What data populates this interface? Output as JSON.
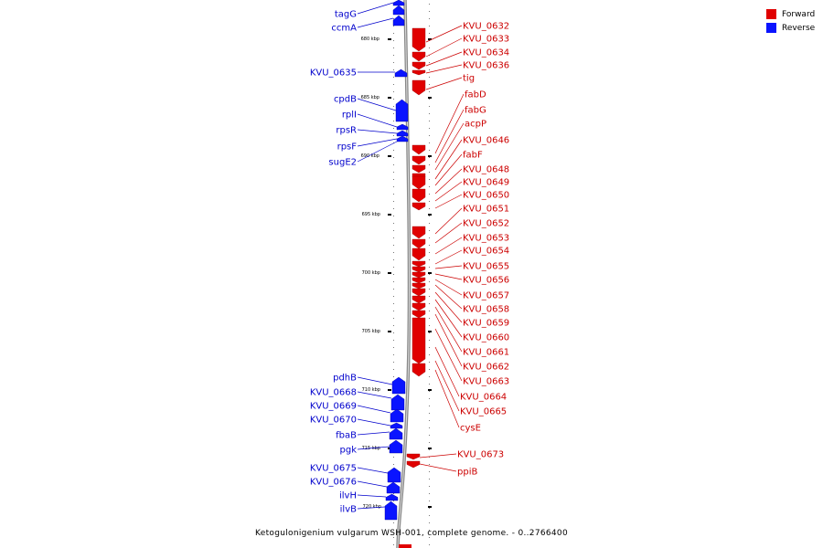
{
  "legend": [
    {
      "label": "Forward",
      "color": "#e00000"
    },
    {
      "label": "Reverse",
      "color": "#0a14ff"
    }
  ],
  "caption": "Ketogulonigenium vulgarum WSH-001, complete genome. - 0..2766400",
  "axis_ticks": [
    {
      "label": "680 kbp"
    },
    {
      "label": "685 kbp"
    },
    {
      "label": "690 kbp"
    },
    {
      "label": "695 kbp"
    },
    {
      "label": "700 kbp"
    },
    {
      "label": "705 kbp"
    },
    {
      "label": "710 kbp"
    },
    {
      "label": "715 kbp"
    },
    {
      "label": "720 kbp"
    }
  ],
  "reverse_genes": [
    "tagG",
    "ccmA",
    "KVU_0635",
    "cpdB",
    "rplI",
    "rpsR",
    "rpsF",
    "sugE2",
    "pdhB",
    "KVU_0668",
    "KVU_0669",
    "KVU_0670",
    "fbaB",
    "pgk",
    "KVU_0675",
    "KVU_0676",
    "ilvH",
    "ilvB"
  ],
  "forward_genes": [
    "KVU_0632",
    "KVU_0633",
    "KVU_0634",
    "KVU_0636",
    "tig",
    "fabD",
    "fabG",
    "acpP",
    "KVU_0646",
    "fabF",
    "KVU_0648",
    "KVU_0649",
    "KVU_0650",
    "KVU_0651",
    "KVU_0652",
    "KVU_0653",
    "KVU_0654",
    "KVU_0655",
    "KVU_0656",
    "KVU_0657",
    "KVU_0658",
    "KVU_0659",
    "KVU_0660",
    "KVU_0661",
    "KVU_0662",
    "KVU_0663",
    "KVU_0664",
    "KVU_0665",
    "cysE",
    "KVU_0673",
    "ppiB"
  ]
}
